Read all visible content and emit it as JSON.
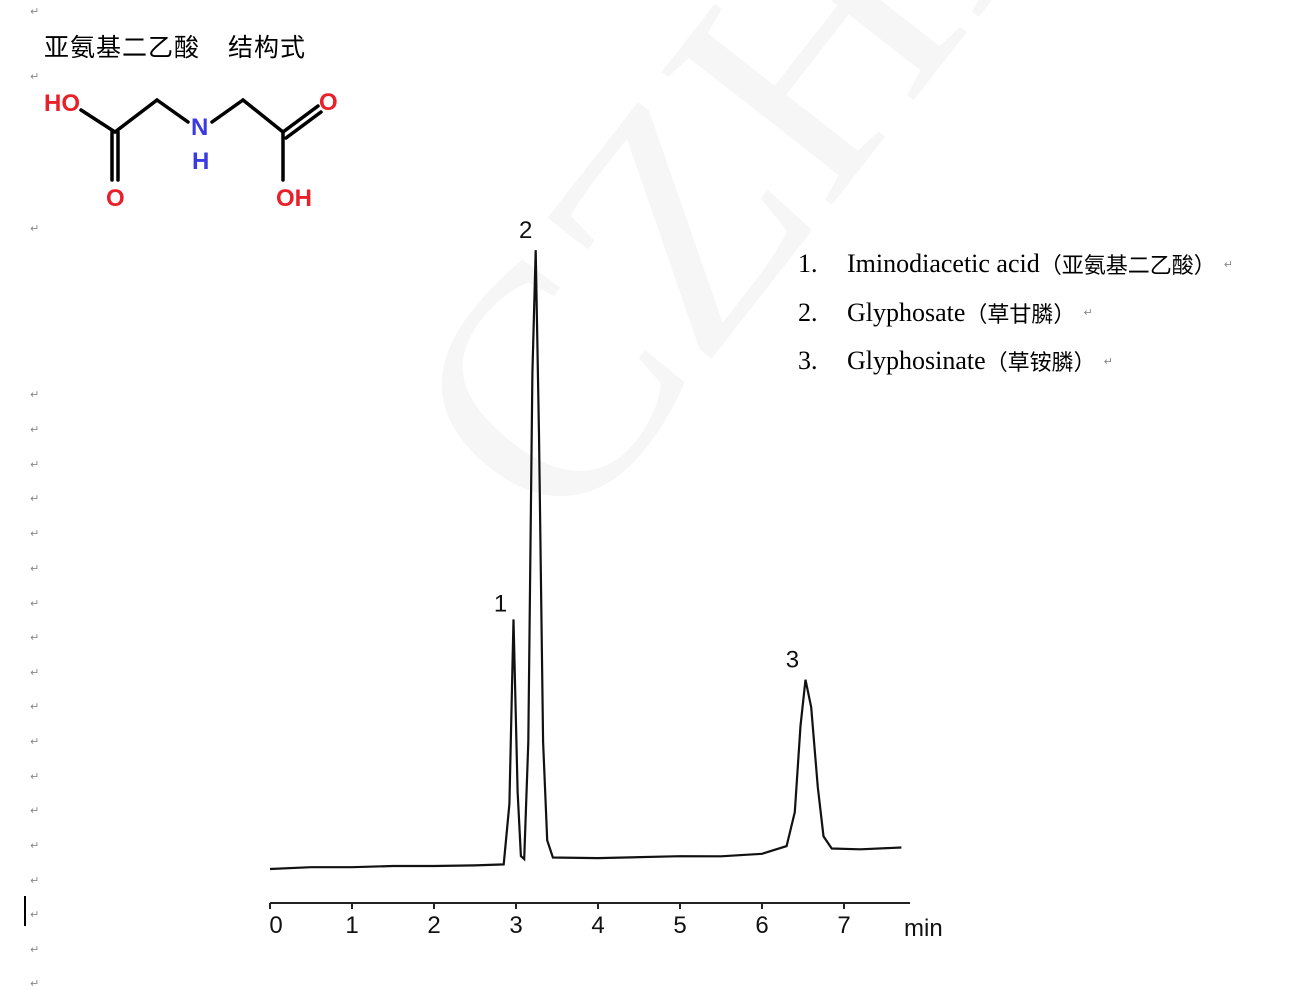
{
  "document": {
    "heading": {
      "compound": "亚氨基二乙酸",
      "suffix": "结构式"
    },
    "watermark": "CZHM",
    "paragraph_mark": "↵",
    "structure": {
      "atoms": {
        "ho_left": "HO",
        "o_left": "O",
        "n": "N",
        "h": "H",
        "o_right": "O",
        "oh_right": "OH"
      },
      "colors": {
        "oxygen": "#e8202a",
        "nitrogen": "#3a3adf",
        "bond": "#000000"
      }
    },
    "legend": [
      {
        "num": "1.",
        "name": "Iminodiacetic acid",
        "cn": "（亚氨基二乙酸）"
      },
      {
        "num": "2.",
        "name": "Glyphosate",
        "cn": "（草甘膦）"
      },
      {
        "num": "3.",
        "name": "Glyphosinate",
        "cn": "（草铵膦）"
      }
    ]
  },
  "chart_data": {
    "type": "line",
    "xlabel": "min",
    "xlim": [
      0,
      7.7
    ],
    "xticks": [
      "0",
      "1",
      "2",
      "3",
      "4",
      "5",
      "6",
      "7"
    ],
    "grid": false,
    "y_axis_shown": false,
    "peak_labels": [
      {
        "label": "1",
        "x": 2.97
      },
      {
        "label": "2",
        "x": 3.24
      },
      {
        "label": "3",
        "x": 6.53
      }
    ],
    "series": [
      {
        "x": [
          0,
          0.5,
          1,
          1.5,
          2,
          2.5,
          2.85,
          2.92,
          2.97,
          3.02,
          3.06,
          3.1,
          3.15,
          3.2,
          3.24,
          3.28,
          3.33,
          3.38,
          3.45,
          4,
          5,
          5.5,
          6,
          6.3,
          6.4,
          6.47,
          6.53,
          6.6,
          6.68,
          6.75,
          6.85,
          7.2,
          7.7
        ],
        "y": [
          0,
          0.2,
          0.1,
          0.2,
          0.1,
          0.1,
          0.2,
          10,
          40,
          12,
          1.5,
          1.0,
          20,
          80,
          100,
          70,
          20,
          4,
          1.2,
          1.0,
          1.1,
          1.0,
          1.3,
          2.5,
          8,
          22,
          29.5,
          25,
          12,
          4,
          2.0,
          1.8,
          2.0
        ]
      }
    ]
  }
}
